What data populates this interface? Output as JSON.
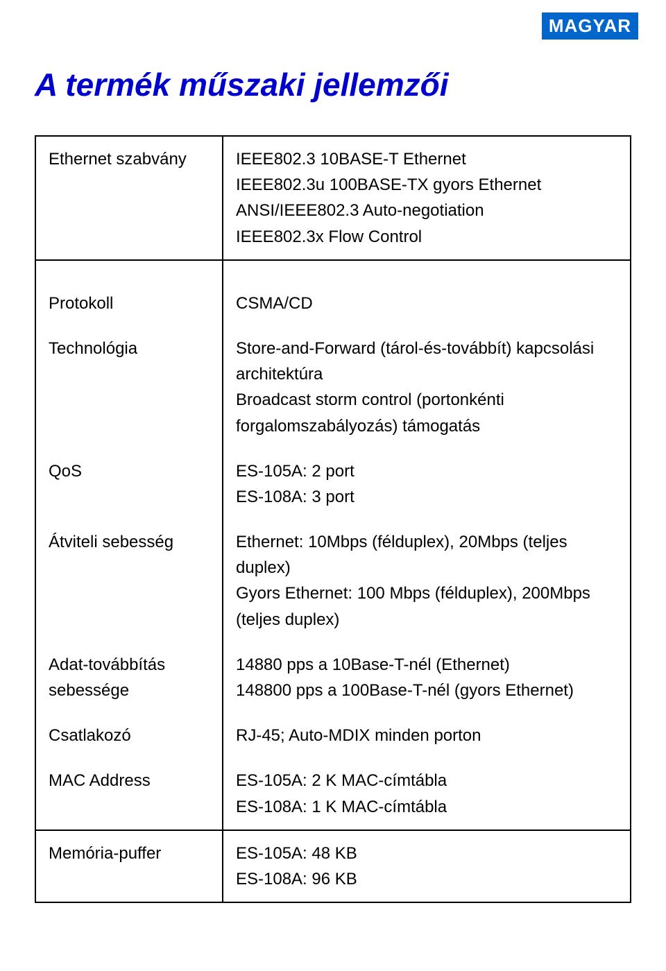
{
  "badge": "MAGYAR",
  "title": "A termék műszaki jellemzői",
  "rows": {
    "ethernet": {
      "label": "Ethernet szabvány",
      "value": "IEEE802.3 10BASE-T Ethernet\nIEEE802.3u 100BASE-TX gyors Ethernet\nANSI/IEEE802.3 Auto-negotiation\nIEEE802.3x Flow Control"
    },
    "protokoll": {
      "label": "Protokoll",
      "value": "CSMA/CD"
    },
    "technologia": {
      "label": "Technológia",
      "value": "Store-and-Forward (tárol-és-továbbít) kapcsolási architektúra\nBroadcast storm control (portonkénti forgalomszabályozás) támogatás"
    },
    "qos": {
      "label": "QoS",
      "value": "ES-105A: 2 port\nES-108A: 3 port"
    },
    "atviteli": {
      "label": "Átviteli sebesség",
      "value": "Ethernet: 10Mbps (félduplex), 20Mbps (teljes duplex)\nGyors Ethernet: 100 Mbps (félduplex), 200Mbps (teljes duplex)"
    },
    "adat": {
      "label": "Adat-továbbítás sebessége",
      "value": "14880 pps a 10Base-T-nél (Ethernet)\n148800 pps a 100Base-T-nél (gyors Ethernet)"
    },
    "csatlakozo": {
      "label": "Csatlakozó",
      "value": "RJ-45; Auto-MDIX minden porton"
    },
    "mac": {
      "label": "MAC Address",
      "value": "ES-105A: 2 K MAC-címtábla\nES-108A: 1 K MAC-címtábla"
    },
    "memoria": {
      "label": "Memória-puffer",
      "value": "ES-105A: 48 KB\nES-108A: 96 KB"
    }
  },
  "style": {
    "badge_bg": "#0066cc",
    "badge_color": "#ffffff",
    "title_color": "#0000cc",
    "border_color": "#000000",
    "body_font_size": 24,
    "title_font_size": 46
  }
}
